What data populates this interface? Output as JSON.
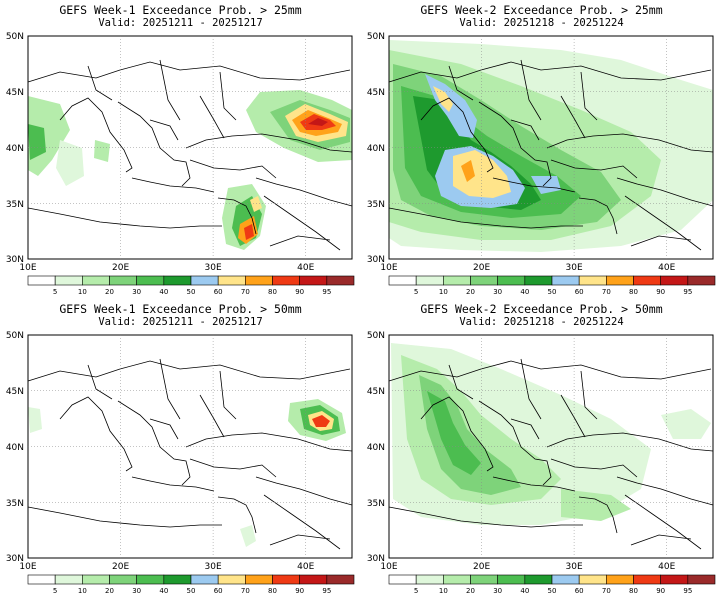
{
  "panels": [
    {
      "title": "GEFS Week-1 Exceedance Prob. > 25mm",
      "valid": "Valid: 20251211 - 20251217"
    },
    {
      "title": "GEFS Week-2 Exceedance Prob. > 25mm",
      "valid": "Valid: 20251218 - 20251224"
    },
    {
      "title": "GEFS Week-1 Exceedance Prob. > 50mm",
      "valid": "Valid: 20251211 - 20251217"
    },
    {
      "title": "GEFS Week-2 Exceedance Prob. > 50mm",
      "valid": "Valid: 20251218 - 20251224"
    }
  ],
  "axes": {
    "lat_labels": [
      "50N",
      "45N",
      "40N",
      "35N",
      "30N"
    ],
    "lon_labels": [
      "10E",
      "20E",
      "30E",
      "40E"
    ],
    "lon_range": [
      10,
      45
    ],
    "lat_range": [
      30,
      50
    ]
  },
  "colorbar": {
    "labels": [
      "5",
      "10",
      "20",
      "30",
      "40",
      "50",
      "60",
      "70",
      "80",
      "90",
      "95"
    ],
    "colors": [
      "#ffffff",
      "#dff7db",
      "#b5ecab",
      "#7ed37a",
      "#4cbd50",
      "#1e9a2e",
      "#9ccaf0",
      "#ffe48a",
      "#ffa21a",
      "#ef3a14",
      "#c41717",
      "#9a2a2a"
    ]
  }
}
